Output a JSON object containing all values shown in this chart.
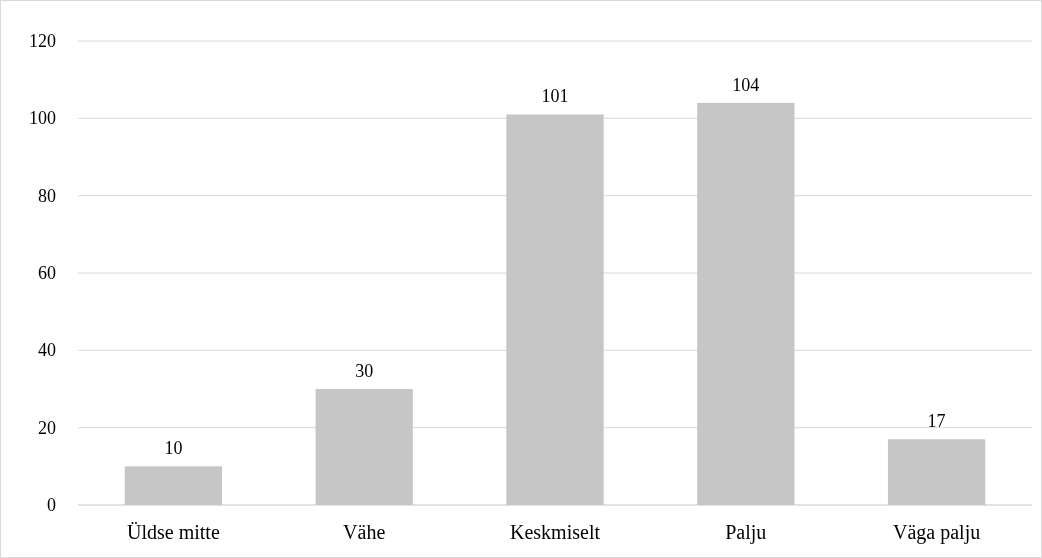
{
  "chart_data": {
    "type": "bar",
    "categories": [
      "Üldse mitte",
      "Vähe",
      "Keskmiselt",
      "Palju",
      "Väga palju"
    ],
    "values": [
      10,
      30,
      101,
      104,
      17
    ],
    "color": "#c6c6c6",
    "ylim": [
      0,
      120
    ],
    "yticks": [
      0,
      20,
      40,
      60,
      80,
      100,
      120
    ],
    "grid": "y",
    "data_labels": true
  }
}
